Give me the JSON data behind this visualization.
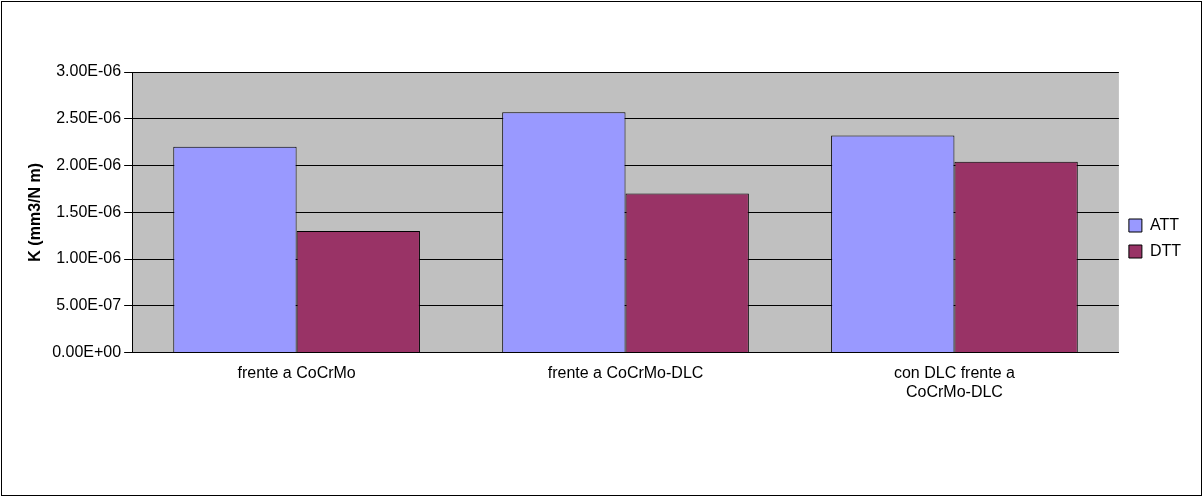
{
  "chart_data": {
    "type": "bar",
    "ylabel": "K (mm3/N m)",
    "categories": [
      "frente a CoCrMo",
      "frente a CoCrMo-DLC",
      "con DLC frente a CoCrMo-DLC"
    ],
    "series": [
      {
        "name": "ATT",
        "color": "#9999ff",
        "values": [
          2.2e-06,
          2.57e-06,
          2.32e-06
        ]
      },
      {
        "name": "DTT",
        "color": "#993366",
        "values": [
          1.3e-06,
          1.7e-06,
          2.04e-06
        ]
      }
    ],
    "ylim": [
      0,
      3e-06
    ],
    "yticks": [
      {
        "value": 0,
        "label": "0.00E+00"
      },
      {
        "value": 5e-07,
        "label": "5.00E-07"
      },
      {
        "value": 1e-06,
        "label": "1.00E-06"
      },
      {
        "value": 1.5e-06,
        "label": "1.50E-06"
      },
      {
        "value": 2e-06,
        "label": "2.00E-06"
      },
      {
        "value": 2.5e-06,
        "label": "2.50E-06"
      },
      {
        "value": 3e-06,
        "label": "3.00E-06"
      }
    ],
    "grid": "y",
    "legend": "right"
  }
}
